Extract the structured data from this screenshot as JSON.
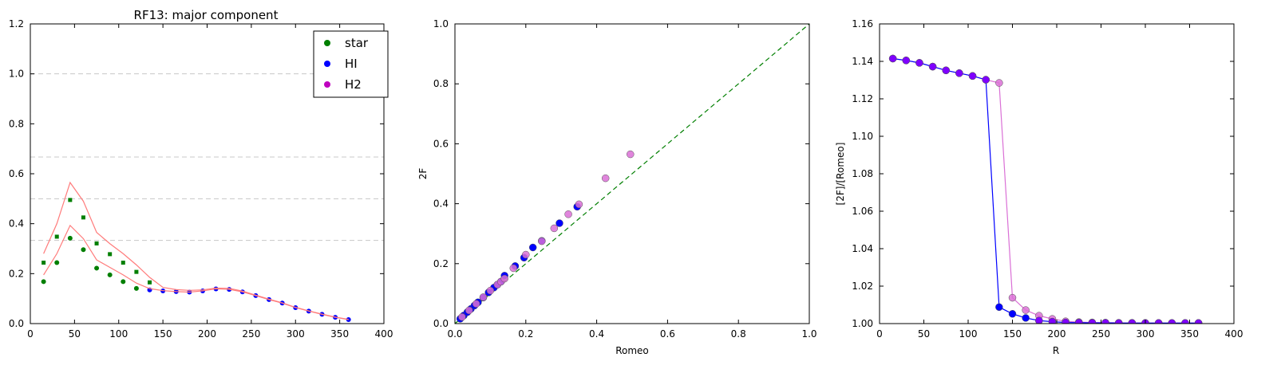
{
  "chart_data": [
    {
      "type": "scatter",
      "title": "RF13: major component",
      "xlabel": "",
      "ylabel": "",
      "xlim": [
        0,
        400
      ],
      "ylim": [
        0,
        1.2
      ],
      "xticks": [
        "0",
        "50",
        "100",
        "150",
        "200",
        "250",
        "300",
        "350",
        "400"
      ],
      "yticks": [
        "0.0",
        "0.2",
        "0.4",
        "0.6",
        "0.8",
        "1.0",
        "1.2"
      ],
      "reference_lines": [
        1.0,
        0.667,
        0.5,
        0.333
      ],
      "legend": {
        "placement": "top-right",
        "entries": [
          {
            "label": "star",
            "color": "#007f00"
          },
          {
            "label": "HI",
            "color": "#0000ff"
          },
          {
            "label": "H2",
            "color": "#bf00bf"
          }
        ]
      },
      "series": [
        {
          "kind": "circle",
          "color": "#007f00",
          "x": [
            15,
            30,
            45,
            60,
            75,
            90,
            105,
            120
          ],
          "y": [
            0.168,
            0.244,
            0.342,
            0.296,
            0.222,
            0.195,
            0.168,
            0.141
          ]
        },
        {
          "kind": "square",
          "color": "#007f00",
          "x": [
            15,
            30,
            45,
            60,
            75,
            90,
            105,
            120,
            135
          ],
          "y": [
            0.244,
            0.348,
            0.495,
            0.425,
            0.321,
            0.278,
            0.244,
            0.207,
            0.165
          ]
        },
        {
          "kind": "circle",
          "color": "#0000ff",
          "x": [
            135,
            150,
            165,
            180,
            195,
            210,
            225,
            240,
            255,
            270,
            285,
            300,
            315,
            330,
            345,
            360
          ],
          "y": [
            0.135,
            0.131,
            0.128,
            0.126,
            0.131,
            0.139,
            0.137,
            0.127,
            0.112,
            0.096,
            0.082,
            0.064,
            0.05,
            0.037,
            0.025,
            0.016
          ]
        },
        {
          "kind": "line",
          "color": "#ff7b7b",
          "x": [
            15,
            30,
            45,
            60,
            75,
            90,
            105,
            120,
            135,
            150,
            165,
            180,
            195,
            210,
            225,
            240,
            255,
            270,
            285,
            300,
            315,
            330,
            345,
            360
          ],
          "y": [
            0.28,
            0.4,
            0.565,
            0.49,
            0.365,
            0.32,
            0.28,
            0.235,
            0.185,
            0.145,
            0.136,
            0.133,
            0.135,
            0.142,
            0.141,
            0.13,
            0.114,
            0.098,
            0.083,
            0.065,
            0.051,
            0.038,
            0.026,
            0.017
          ]
        },
        {
          "kind": "line",
          "color": "#ff7b7b",
          "x": [
            15,
            30,
            45,
            60,
            75,
            90,
            105,
            120,
            135,
            150,
            165,
            180,
            195,
            210,
            225,
            240,
            255,
            270,
            285,
            300,
            315,
            330,
            345,
            360
          ],
          "y": [
            0.195,
            0.28,
            0.393,
            0.34,
            0.255,
            0.225,
            0.195,
            0.162,
            0.14,
            0.132,
            0.128,
            0.126,
            0.131,
            0.139,
            0.137,
            0.127,
            0.112,
            0.096,
            0.082,
            0.064,
            0.05,
            0.037,
            0.025,
            0.016
          ]
        }
      ]
    },
    {
      "type": "scatter",
      "title": "",
      "xlabel": "Romeo",
      "ylabel": "2F",
      "xlim": [
        0,
        1
      ],
      "ylim": [
        0,
        1
      ],
      "xticks": [
        "0.0",
        "0.2",
        "0.4",
        "0.6",
        "0.8",
        "1.0"
      ],
      "yticks": [
        "0.0",
        "0.2",
        "0.4",
        "0.6",
        "0.8",
        "1.0"
      ],
      "reference_lines": [],
      "series": [
        {
          "kind": "dashed-line",
          "color": "#007f00",
          "x": [
            0,
            1
          ],
          "y": [
            0,
            1
          ]
        },
        {
          "kind": "circle",
          "color": "#0000ff",
          "x": [
            0.015,
            0.025,
            0.035,
            0.045,
            0.055,
            0.065,
            0.08,
            0.095,
            0.11,
            0.12,
            0.13,
            0.14,
            0.17,
            0.195,
            0.22,
            0.245,
            0.295,
            0.345
          ],
          "y": [
            0.016,
            0.027,
            0.038,
            0.049,
            0.06,
            0.071,
            0.087,
            0.104,
            0.12,
            0.13,
            0.14,
            0.16,
            0.192,
            0.22,
            0.254,
            0.276,
            0.335,
            0.39
          ]
        },
        {
          "kind": "circle",
          "color": "#da70d6",
          "x": [
            0.02,
            0.04,
            0.06,
            0.08,
            0.1,
            0.12,
            0.13,
            0.14,
            0.165,
            0.2,
            0.245,
            0.28,
            0.32,
            0.35,
            0.425,
            0.495
          ],
          "y": [
            0.022,
            0.044,
            0.066,
            0.088,
            0.11,
            0.13,
            0.14,
            0.15,
            0.185,
            0.23,
            0.275,
            0.318,
            0.365,
            0.398,
            0.485,
            0.565
          ]
        }
      ]
    },
    {
      "type": "line",
      "title": "",
      "xlabel": "R",
      "ylabel": "[2F]/[Romeo]",
      "xlim": [
        0,
        400
      ],
      "ylim": [
        1.0,
        1.16
      ],
      "xticks": [
        "0",
        "50",
        "100",
        "150",
        "200",
        "250",
        "300",
        "350",
        "400"
      ],
      "yticks": [
        "1.00",
        "1.02",
        "1.04",
        "1.06",
        "1.08",
        "1.10",
        "1.12",
        "1.14",
        "1.16"
      ],
      "reference_lines": [],
      "series": [
        {
          "kind": "line-markers",
          "color": "#da70d6",
          "x": [
            15,
            30,
            45,
            60,
            75,
            90,
            105,
            120,
            135,
            150,
            165,
            180,
            195,
            210,
            225,
            240,
            255,
            270,
            285,
            300,
            315,
            330,
            345,
            360
          ],
          "y": [
            1.1415,
            1.1405,
            1.1392,
            1.1372,
            1.1352,
            1.1337,
            1.1322,
            1.1302,
            1.1285,
            1.0138,
            1.0072,
            1.0042,
            1.0025,
            1.0012,
            1.0008,
            1.0006,
            1.0005,
            1.0004,
            1.0004,
            1.0003,
            1.0003,
            1.0003,
            1.0003,
            1.0003
          ]
        },
        {
          "kind": "line-markers",
          "color": "#0000ff",
          "x": [
            15,
            30,
            45,
            60,
            75,
            90,
            105,
            120,
            135,
            150,
            165,
            180,
            195,
            210,
            225,
            240,
            255,
            270,
            285,
            300,
            315,
            330,
            345,
            360
          ],
          "y": [
            1.1415,
            1.1405,
            1.1392,
            1.1372,
            1.1352,
            1.1337,
            1.1322,
            1.1302,
            1.0088,
            1.0052,
            1.003,
            1.0016,
            1.001,
            1.0006,
            1.0005,
            1.0004,
            1.0004,
            1.0003,
            1.0003,
            1.0003,
            1.0003,
            1.0003,
            1.0003,
            1.0003
          ]
        },
        {
          "kind": "circle",
          "color": "#7f00ff",
          "x": [
            15,
            30,
            45,
            60,
            75,
            90,
            105,
            120,
            180,
            195,
            210,
            225,
            240,
            255,
            270,
            285,
            300,
            315,
            330,
            345,
            360
          ],
          "y": [
            1.1415,
            1.1405,
            1.1392,
            1.1372,
            1.1352,
            1.1337,
            1.1322,
            1.1302,
            1.0016,
            1.001,
            1.0006,
            1.0005,
            1.0004,
            1.0004,
            1.0003,
            1.0003,
            1.0003,
            1.0003,
            1.0003,
            1.0003,
            1.0003
          ]
        }
      ]
    }
  ]
}
